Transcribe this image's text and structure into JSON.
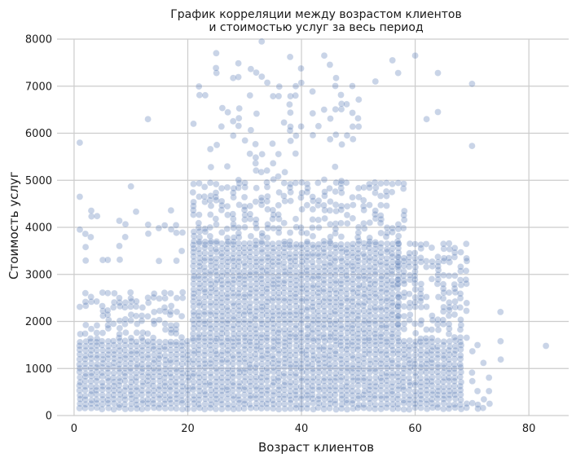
{
  "chart_data": {
    "type": "scatter",
    "title": [
      "График корреляции между возрастом клиентов",
      "и стоимостью услуг за весь период"
    ],
    "xlabel": "Возраст клиентов",
    "ylabel": "Стоимость услуг",
    "xlim": [
      -3,
      87
    ],
    "ylim": [
      0,
      8000
    ],
    "xticks": [
      0,
      20,
      40,
      60,
      80
    ],
    "yticks": [
      0,
      1000,
      2000,
      3000,
      4000,
      5000,
      6000,
      7000,
      8000
    ],
    "grid": true,
    "point_color": "#4c72b0",
    "point_alpha": 0.3,
    "bands": [
      {
        "x": [
          1,
          19
        ],
        "y": [
          150,
          1650
        ],
        "density": "high"
      },
      {
        "x": [
          1,
          19
        ],
        "y": [
          1650,
          2600
        ],
        "density": "medium"
      },
      {
        "x": [
          1,
          19
        ],
        "y": [
          3300,
          4400
        ],
        "density": "low"
      },
      {
        "x": [
          20,
          68
        ],
        "y": [
          150,
          1650
        ],
        "density": "high"
      },
      {
        "x": [
          21,
          57
        ],
        "y": [
          1650,
          3700
        ],
        "density": "high"
      },
      {
        "x": [
          57,
          69
        ],
        "y": [
          1650,
          3700
        ],
        "density": "medium"
      },
      {
        "x": [
          21,
          58
        ],
        "y": [
          3700,
          5000
        ],
        "density": "medium"
      },
      {
        "x": [
          22,
          50
        ],
        "y": [
          5000,
          7500
        ],
        "density": "low"
      },
      {
        "x": [
          69,
          75
        ],
        "y": [
          150,
          1600
        ],
        "density": "low"
      }
    ],
    "outliers": [
      {
        "x": 1,
        "y": 5800
      },
      {
        "x": 1,
        "y": 4650
      },
      {
        "x": 10,
        "y": 4870
      },
      {
        "x": 13,
        "y": 6300
      },
      {
        "x": 33,
        "y": 7950
      },
      {
        "x": 62,
        "y": 6300
      },
      {
        "x": 64,
        "y": 7280
      },
      {
        "x": 57,
        "y": 7280
      },
      {
        "x": 70,
        "y": 7050
      },
      {
        "x": 70,
        "y": 5730
      },
      {
        "x": 75,
        "y": 2200
      },
      {
        "x": 83,
        "y": 1480
      },
      {
        "x": 60,
        "y": 7650
      },
      {
        "x": 53,
        "y": 7100
      },
      {
        "x": 25,
        "y": 7700
      },
      {
        "x": 44,
        "y": 7650
      },
      {
        "x": 21,
        "y": 6200
      },
      {
        "x": 64,
        "y": 6450
      },
      {
        "x": 38,
        "y": 7620
      },
      {
        "x": 56,
        "y": 7550
      }
    ]
  }
}
